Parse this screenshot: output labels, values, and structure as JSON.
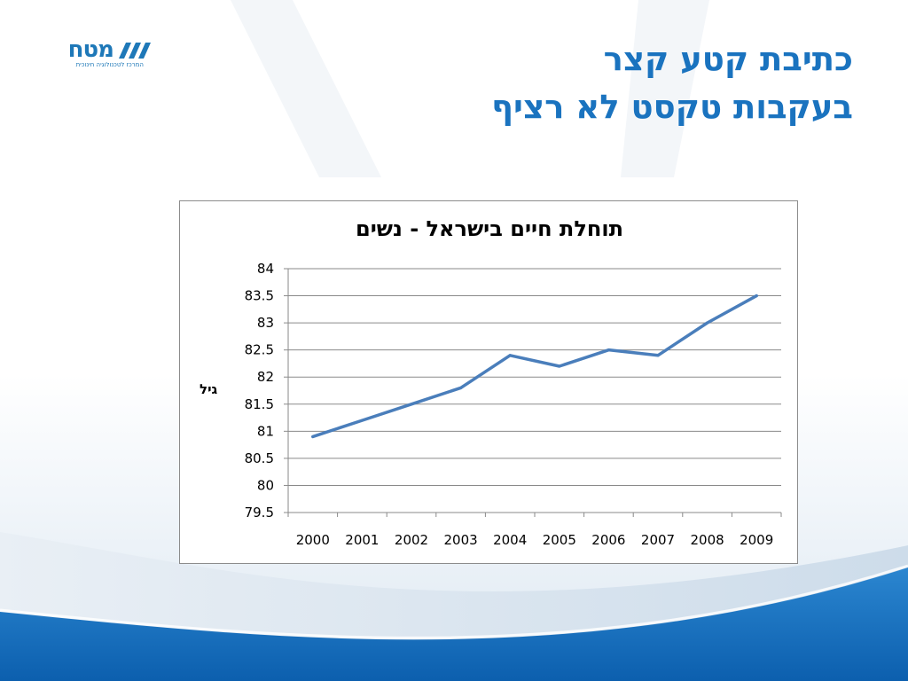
{
  "logo": {
    "name": "מטח",
    "tagline": "המרכז לטכנולוגיה חינוכית"
  },
  "slide": {
    "title_line1": "כתיבת קטע קצר",
    "title_line2": "בעקבות טקסט לא רציף"
  },
  "colors": {
    "title": "#1a73bf",
    "series": "#4a7ebb",
    "footer_wave": "#1670c0"
  },
  "chart_data": {
    "type": "line",
    "title": "תוחלת חיים בישראל - נשים",
    "ylabel": "גיל",
    "xlabel": "",
    "categories": [
      "2000",
      "2001",
      "2002",
      "2003",
      "2004",
      "2005",
      "2006",
      "2007",
      "2008",
      "2009"
    ],
    "series": [
      {
        "values": [
          80.9,
          81.2,
          81.5,
          81.8,
          82.4,
          82.2,
          82.5,
          82.4,
          83.0,
          83.5
        ]
      }
    ],
    "ylim": [
      79.5,
      84
    ],
    "yticks": [
      "79.5",
      "80",
      "80.5",
      "81",
      "81.5",
      "82",
      "82.5",
      "83",
      "83.5",
      "84"
    ],
    "grid": true,
    "legend": "none"
  }
}
